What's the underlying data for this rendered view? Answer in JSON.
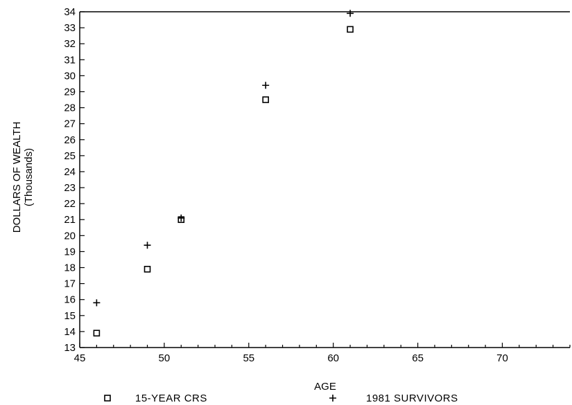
{
  "chart_data": {
    "type": "scatter",
    "title": "",
    "xlabel": "AGE",
    "ylabel": "DOLLARS OF WEALTH",
    "ylabel_sub": "(Thousands)",
    "xlim": [
      45,
      74
    ],
    "ylim": [
      13,
      34
    ],
    "x_ticks": [
      45,
      50,
      55,
      60,
      65,
      70
    ],
    "y_ticks": [
      13,
      14,
      15,
      16,
      17,
      18,
      19,
      20,
      21,
      22,
      23,
      24,
      25,
      26,
      27,
      28,
      29,
      30,
      31,
      32,
      33,
      34
    ],
    "grid": false,
    "legend_position": "bottom",
    "series": [
      {
        "name": "15-YEAR CRS",
        "marker": "square",
        "x": [
          46,
          49,
          51,
          56,
          61
        ],
        "y": [
          13.9,
          17.9,
          21.0,
          28.5,
          32.9
        ]
      },
      {
        "name": "1981 SURVIVORS",
        "marker": "plus",
        "x": [
          46,
          49,
          51,
          56,
          61
        ],
        "y": [
          15.8,
          19.4,
          21.1,
          29.4,
          33.9
        ]
      }
    ]
  },
  "colors": {
    "ink": "#000000",
    "background": "#ffffff"
  }
}
